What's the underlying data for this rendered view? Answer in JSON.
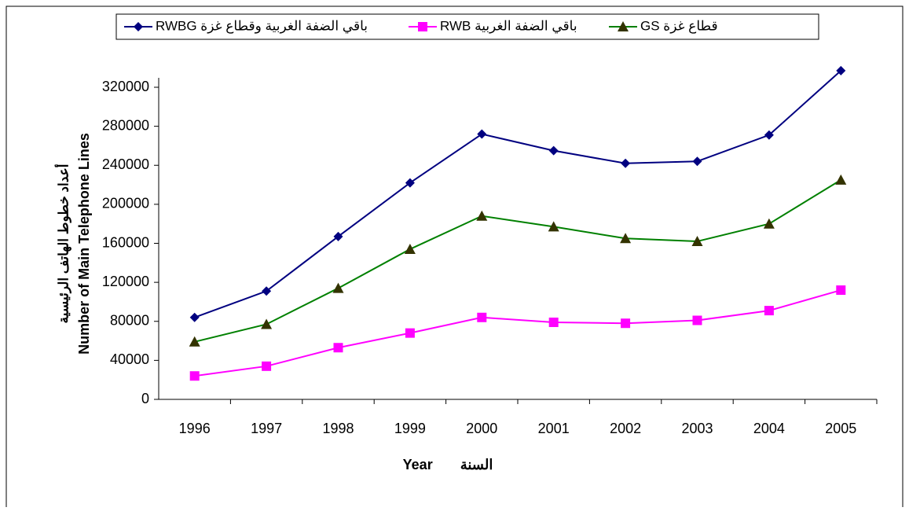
{
  "chart_data": {
    "type": "line",
    "categories": [
      "1996",
      "1997",
      "1998",
      "1999",
      "2000",
      "2001",
      "2002",
      "2003",
      "2004",
      "2005"
    ],
    "series": [
      {
        "name": "باقي الضفة الغربية وقطاع غزة  RWBG",
        "color": "#000080",
        "marker": "diamond",
        "values": [
          84000,
          111000,
          167000,
          222000,
          272000,
          255000,
          242000,
          244000,
          271000,
          337000
        ]
      },
      {
        "name": "باقي الضفة الغربية  RWB",
        "color": "#ff00ff",
        "marker": "square",
        "values": [
          24000,
          34000,
          53000,
          68000,
          84000,
          79000,
          78000,
          81000,
          91000,
          112000
        ]
      },
      {
        "name": "قطاع غزة GS",
        "color": "#008000",
        "marker": "triangle",
        "values": [
          59000,
          77000,
          114000,
          154000,
          188000,
          177000,
          165000,
          162000,
          180000,
          225000
        ]
      }
    ],
    "ylabel": [
      "أعداد خطوط الهاتف الرئيسية",
      "Number of Main Telephone Lines"
    ],
    "xlabel": "Year       السنة",
    "ylim": [
      0,
      320000
    ],
    "yticks": [
      0,
      40000,
      80000,
      120000,
      160000,
      200000,
      240000,
      280000,
      320000
    ],
    "grid": false
  }
}
